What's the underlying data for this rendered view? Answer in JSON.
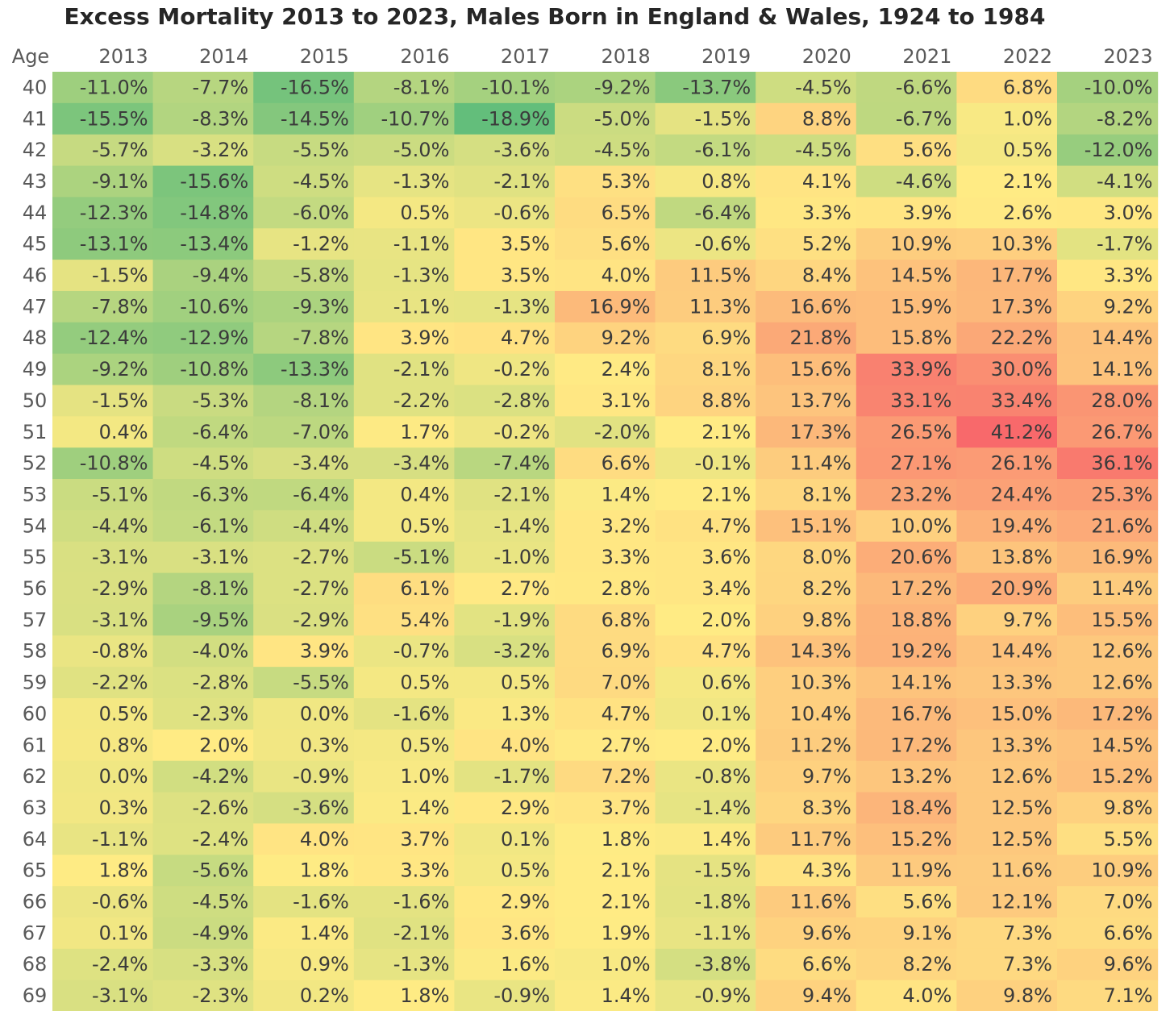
{
  "chart_data": {
    "type": "heatmap",
    "title": "Excess Mortality 2013 to 2023, Males Born in England & Wales, 1924 to 1984",
    "row_header": "Age",
    "columns": [
      "2013",
      "2014",
      "2015",
      "2016",
      "2017",
      "2018",
      "2019",
      "2020",
      "2021",
      "2022",
      "2023"
    ],
    "rows": [
      "40",
      "41",
      "42",
      "43",
      "44",
      "45",
      "46",
      "47",
      "48",
      "49",
      "50",
      "51",
      "52",
      "53",
      "54",
      "55",
      "56",
      "57",
      "58",
      "59",
      "60",
      "61",
      "62",
      "63",
      "64",
      "65",
      "66",
      "67",
      "68",
      "69"
    ],
    "values": [
      [
        -11.0,
        -7.7,
        -16.5,
        -8.1,
        -10.1,
        -9.2,
        -13.7,
        -4.5,
        -6.6,
        6.8,
        -10.0
      ],
      [
        -15.5,
        -8.3,
        -14.5,
        -10.7,
        -18.9,
        -5.0,
        -1.5,
        8.8,
        -6.7,
        1.0,
        -8.2
      ],
      [
        -5.7,
        -3.2,
        -5.5,
        -5.0,
        -3.6,
        -4.5,
        -6.1,
        -4.5,
        5.6,
        0.5,
        -12.0
      ],
      [
        -9.1,
        -15.6,
        -4.5,
        -1.3,
        -2.1,
        5.3,
        0.8,
        4.1,
        -4.6,
        2.1,
        -4.1
      ],
      [
        -12.3,
        -14.8,
        -6.0,
        0.5,
        -0.6,
        6.5,
        -6.4,
        3.3,
        3.9,
        2.6,
        3.0
      ],
      [
        -13.1,
        -13.4,
        -1.2,
        -1.1,
        3.5,
        5.6,
        -0.6,
        5.2,
        10.9,
        10.3,
        -1.7
      ],
      [
        -1.5,
        -9.4,
        -5.8,
        -1.3,
        3.5,
        4.0,
        11.5,
        8.4,
        14.5,
        17.7,
        3.3
      ],
      [
        -7.8,
        -10.6,
        -9.3,
        -1.1,
        -1.3,
        16.9,
        11.3,
        16.6,
        15.9,
        17.3,
        9.2
      ],
      [
        -12.4,
        -12.9,
        -7.8,
        3.9,
        4.7,
        9.2,
        6.9,
        21.8,
        15.8,
        22.2,
        14.4
      ],
      [
        -9.2,
        -10.8,
        -13.3,
        -2.1,
        -0.2,
        2.4,
        8.1,
        15.6,
        33.9,
        30.0,
        14.1
      ],
      [
        -1.5,
        -5.3,
        -8.1,
        -2.2,
        -2.8,
        3.1,
        8.8,
        13.7,
        33.1,
        33.4,
        28.0
      ],
      [
        0.4,
        -6.4,
        -7.0,
        1.7,
        -0.2,
        -2.0,
        2.1,
        17.3,
        26.5,
        41.2,
        26.7
      ],
      [
        -10.8,
        -4.5,
        -3.4,
        -3.4,
        -7.4,
        6.6,
        -0.1,
        11.4,
        27.1,
        26.1,
        36.1
      ],
      [
        -5.1,
        -6.3,
        -6.4,
        0.4,
        -2.1,
        1.4,
        2.1,
        8.1,
        23.2,
        24.4,
        25.3
      ],
      [
        -4.4,
        -6.1,
        -4.4,
        0.5,
        -1.4,
        3.2,
        4.7,
        15.1,
        10.0,
        19.4,
        21.6
      ],
      [
        -3.1,
        -3.1,
        -2.7,
        -5.1,
        -1.0,
        3.3,
        3.6,
        8.0,
        20.6,
        13.8,
        16.9
      ],
      [
        -2.9,
        -8.1,
        -2.7,
        6.1,
        2.7,
        2.8,
        3.4,
        8.2,
        17.2,
        20.9,
        11.4
      ],
      [
        -3.1,
        -9.5,
        -2.9,
        5.4,
        -1.9,
        6.8,
        2.0,
        9.8,
        18.8,
        9.7,
        15.5
      ],
      [
        -0.8,
        -4.0,
        3.9,
        -0.7,
        -3.2,
        6.9,
        4.7,
        14.3,
        19.2,
        14.4,
        12.6
      ],
      [
        -2.2,
        -2.8,
        -5.5,
        0.5,
        0.5,
        7.0,
        0.6,
        10.3,
        14.1,
        13.3,
        12.6
      ],
      [
        0.5,
        -2.3,
        0.0,
        -1.6,
        1.3,
        4.7,
        0.1,
        10.4,
        16.7,
        15.0,
        17.2
      ],
      [
        0.8,
        2.0,
        0.3,
        0.5,
        4.0,
        2.7,
        2.0,
        11.2,
        17.2,
        13.3,
        14.5
      ],
      [
        0.0,
        -4.2,
        -0.9,
        1.0,
        -1.7,
        7.2,
        -0.8,
        9.7,
        13.2,
        12.6,
        15.2
      ],
      [
        0.3,
        -2.6,
        -3.6,
        1.4,
        2.9,
        3.7,
        -1.4,
        8.3,
        18.4,
        12.5,
        9.8
      ],
      [
        -1.1,
        -2.4,
        4.0,
        3.7,
        0.1,
        1.8,
        1.4,
        11.7,
        15.2,
        12.5,
        5.5
      ],
      [
        1.8,
        -5.6,
        1.8,
        3.3,
        0.5,
        2.1,
        -1.5,
        4.3,
        11.9,
        11.6,
        10.9
      ],
      [
        -0.6,
        -4.5,
        -1.6,
        -1.6,
        2.9,
        2.1,
        -1.8,
        11.6,
        5.6,
        12.1,
        7.0
      ],
      [
        0.1,
        -4.9,
        1.4,
        -2.1,
        3.6,
        1.9,
        -1.1,
        9.6,
        9.1,
        7.3,
        6.6
      ],
      [
        -2.4,
        -3.3,
        0.9,
        -1.3,
        1.6,
        1.0,
        -3.8,
        6.6,
        8.2,
        7.3,
        9.6
      ],
      [
        -3.1,
        -2.3,
        0.2,
        1.8,
        -0.9,
        1.4,
        -0.9,
        9.4,
        4.0,
        9.8,
        7.1
      ]
    ],
    "value_format": "percent_one_decimal",
    "color_scale": {
      "low": "#63be7b",
      "mid": "#ffeb84",
      "high": "#f8696b",
      "low_value": -18.9,
      "mid_value": 2.0,
      "high_value": 41.2
    },
    "legend": "none",
    "grid": false
  }
}
